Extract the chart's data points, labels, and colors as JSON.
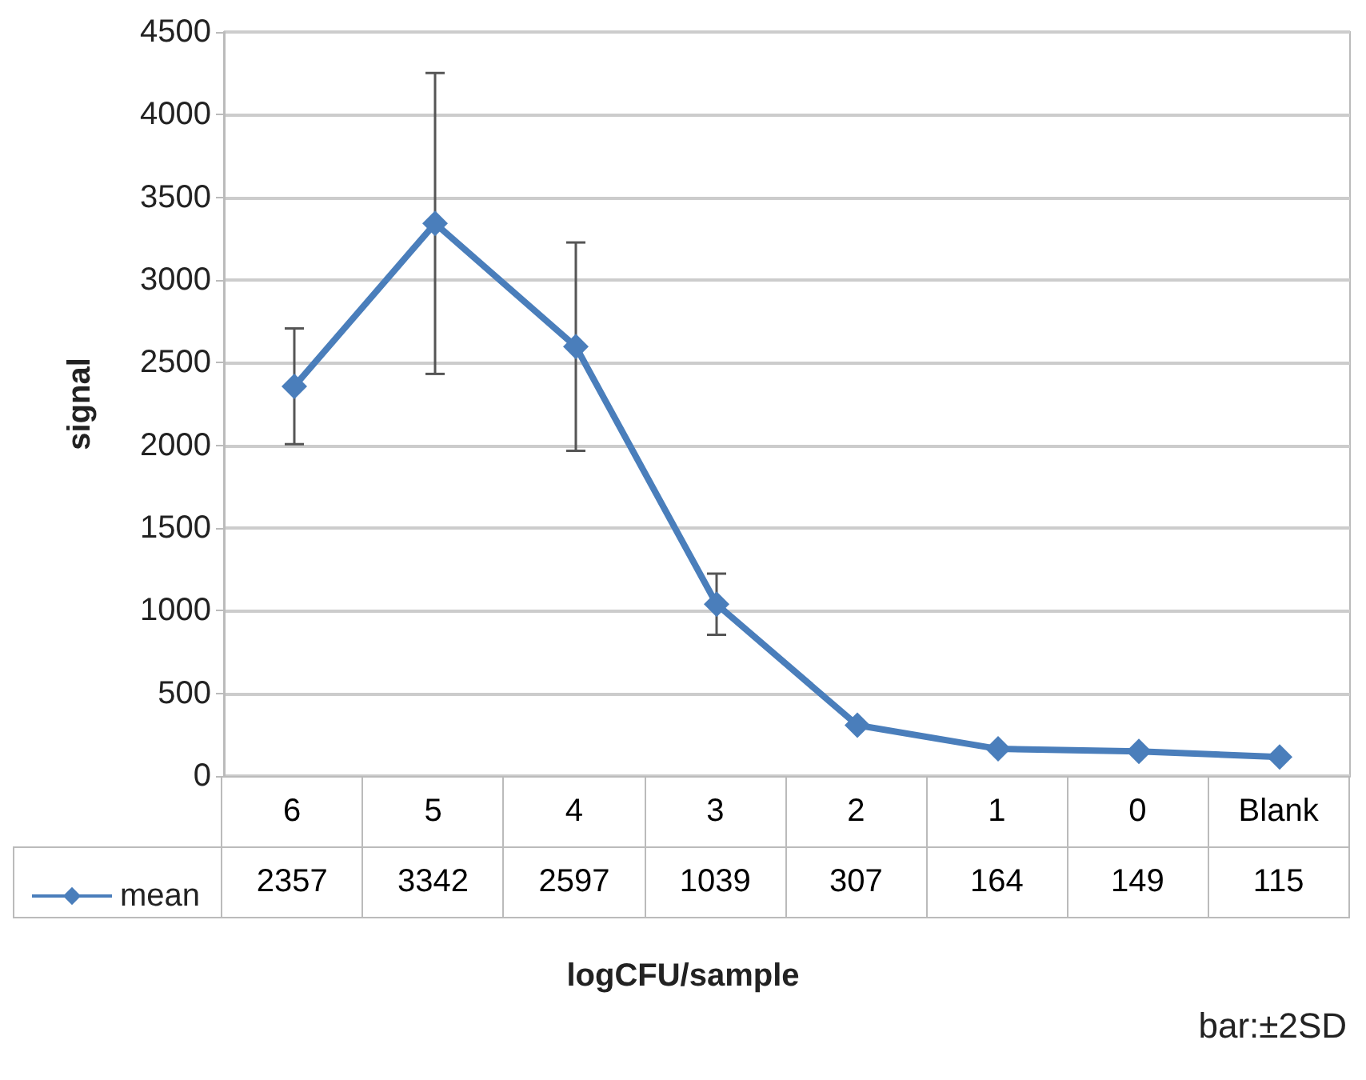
{
  "chart_data": {
    "type": "line",
    "xlabel": "logCFU/sample",
    "ylabel": "signal",
    "annotations": [
      "bar:±2SD"
    ],
    "categories": [
      "6",
      "5",
      "4",
      "3",
      "2",
      "1",
      "0",
      "Blank"
    ],
    "series": [
      {
        "name": "mean",
        "color": "#4a7ebb",
        "values": [
          2357,
          3342,
          2597,
          1039,
          307,
          164,
          149,
          115
        ],
        "errors": [
          350,
          910,
          630,
          185,
          null,
          null,
          null,
          null
        ]
      }
    ],
    "ylim": [
      0,
      4500
    ],
    "yticks": [
      0,
      500,
      1000,
      1500,
      2000,
      2500,
      3000,
      3500,
      4000,
      4500
    ],
    "grid": "y",
    "legend": "bottom",
    "marker": "diamond",
    "line_style": "solid",
    "data_labels": true
  }
}
